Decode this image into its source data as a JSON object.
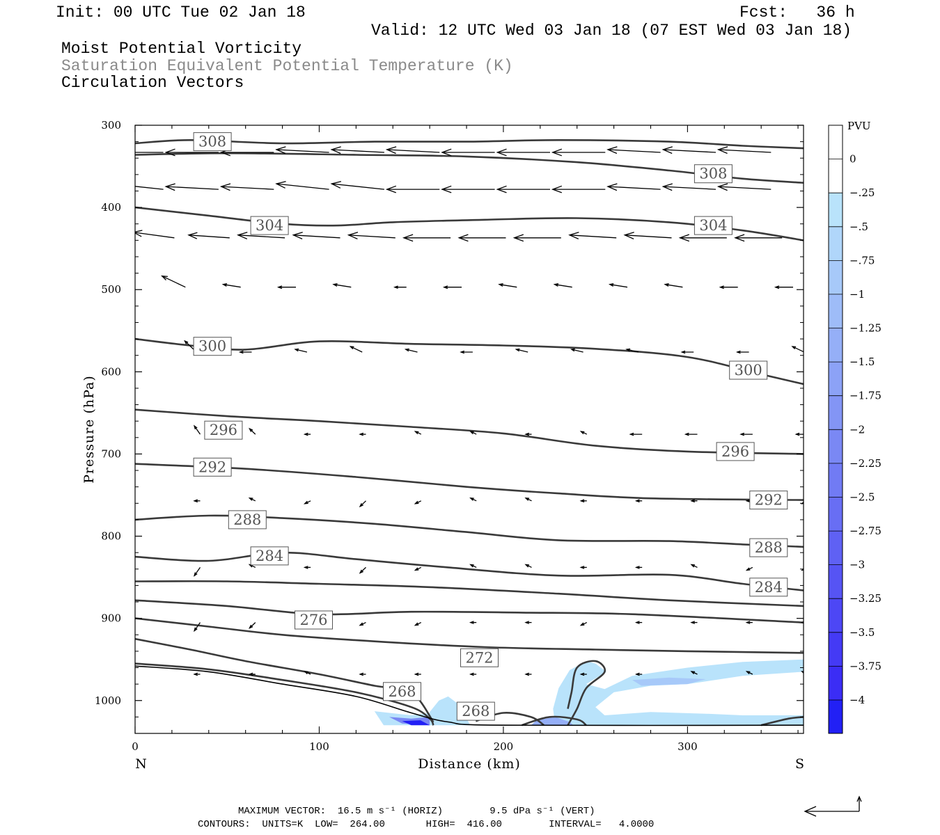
{
  "header": {
    "init": "Init: 00 UTC Tue 02 Jan 18",
    "fcst": "Fcst:   36 h",
    "valid": "Valid: 12 UTC Wed 03 Jan 18 (07 EST Wed 03 Jan 18)",
    "field1": "Moist Potential Vorticity",
    "field2": "Saturation Equivalent Potential Temperature (K)",
    "field3": "Circulation Vectors"
  },
  "footer": {
    "line1": "MAXIMUM VECTOR:  16.5 m s⁻¹ (HORIZ)        9.5 dPa s⁻¹ (VERT)",
    "line2": "CONTOURS:  UNITS=K  LOW=  264.00       HIGH=  416.00        INTERVAL=   4.0000"
  },
  "colors": {
    "contour": "#3a3a3a",
    "pv_light": "#b6e1fb",
    "pv_strong": "#1e1ef5"
  },
  "chart_data": {
    "type": "contour",
    "xlabel": "Distance (km)",
    "ylabel": "Pressure (hPa)",
    "x_left_label": "N",
    "x_right_label": "S",
    "xlim": [
      0,
      363
    ],
    "ylim": [
      300,
      1040
    ],
    "x_ticks": [
      0,
      100,
      200,
      300
    ],
    "y_ticks": [
      300,
      400,
      500,
      600,
      700,
      800,
      900,
      1000
    ],
    "colorbar": {
      "title": "PVU",
      "levels": [
        "0",
        "-.25",
        "-.5",
        "-.75",
        "-1",
        "-1.25",
        "-1.5",
        "-1.75",
        "-2",
        "-2.25",
        "-2.5",
        "-2.75",
        "-3",
        "-3.25",
        "-3.5",
        "-3.75",
        "-4"
      ],
      "colors": [
        "#ffffff",
        "#ffffff",
        "#b9e3fb",
        "#b0d6fa",
        "#a7c9f9",
        "#9ebcf8",
        "#95aff7",
        "#8ca2f6",
        "#8395f5",
        "#7a88f4",
        "#717bf4",
        "#686ef4",
        "#5f61f4",
        "#5654f4",
        "#4d47f5",
        "#443af5",
        "#3b2df5",
        "#2220f5"
      ]
    },
    "contour_labels": [
      {
        "text": "308",
        "x": 42,
        "p": 320
      },
      {
        "text": "308",
        "x": 314,
        "p": 359
      },
      {
        "text": "304",
        "x": 73,
        "p": 422
      },
      {
        "text": "304",
        "x": 314,
        "p": 422
      },
      {
        "text": "300",
        "x": 42,
        "p": 569
      },
      {
        "text": "300",
        "x": 333,
        "p": 598
      },
      {
        "text": "296",
        "x": 48,
        "p": 671
      },
      {
        "text": "296",
        "x": 326,
        "p": 697
      },
      {
        "text": "292",
        "x": 42,
        "p": 716
      },
      {
        "text": "292",
        "x": 344,
        "p": 756
      },
      {
        "text": "288",
        "x": 61,
        "p": 780
      },
      {
        "text": "288",
        "x": 344,
        "p": 814
      },
      {
        "text": "284",
        "x": 73,
        "p": 824
      },
      {
        "text": "284",
        "x": 344,
        "p": 862
      },
      {
        "text": "276",
        "x": 97,
        "p": 902
      },
      {
        "text": "272",
        "x": 187,
        "p": 948
      },
      {
        "text": "268",
        "x": 145,
        "p": 989
      },
      {
        "text": "268",
        "x": 185,
        "p": 1013
      }
    ],
    "contours": [
      [
        [
          0,
          322
        ],
        [
          30,
          318
        ],
        [
          80,
          322
        ],
        [
          130,
          320
        ],
        [
          180,
          320
        ],
        [
          230,
          318
        ],
        [
          290,
          320
        ],
        [
          330,
          325
        ],
        [
          363,
          328
        ]
      ],
      [
        [
          0,
          336
        ],
        [
          50,
          334
        ],
        [
          120,
          336
        ],
        [
          180,
          338
        ],
        [
          240,
          345
        ],
        [
          290,
          355
        ],
        [
          330,
          365
        ],
        [
          363,
          370
        ]
      ],
      [
        [
          0,
          400
        ],
        [
          40,
          410
        ],
        [
          80,
          420
        ],
        [
          110,
          422
        ],
        [
          140,
          418
        ],
        [
          190,
          415
        ],
        [
          240,
          413
        ],
        [
          290,
          418
        ],
        [
          330,
          428
        ],
        [
          363,
          440
        ]
      ],
      [
        [
          0,
          560
        ],
        [
          30,
          568
        ],
        [
          60,
          573
        ],
        [
          100,
          563
        ],
        [
          150,
          566
        ],
        [
          200,
          568
        ],
        [
          250,
          572
        ],
        [
          300,
          582
        ],
        [
          340,
          603
        ],
        [
          363,
          615
        ]
      ],
      [
        [
          0,
          646
        ],
        [
          50,
          654
        ],
        [
          100,
          660
        ],
        [
          150,
          667
        ],
        [
          200,
          675
        ],
        [
          250,
          690
        ],
        [
          300,
          697
        ],
        [
          363,
          700
        ]
      ],
      [
        [
          0,
          712
        ],
        [
          60,
          718
        ],
        [
          120,
          728
        ],
        [
          180,
          740
        ],
        [
          230,
          748
        ],
        [
          280,
          754
        ],
        [
          363,
          756
        ]
      ],
      [
        [
          0,
          780
        ],
        [
          40,
          775
        ],
        [
          80,
          778
        ],
        [
          130,
          785
        ],
        [
          180,
          795
        ],
        [
          230,
          805
        ],
        [
          290,
          806
        ],
        [
          330,
          810
        ],
        [
          363,
          813
        ]
      ],
      [
        [
          0,
          825
        ],
        [
          40,
          830
        ],
        [
          80,
          820
        ],
        [
          120,
          828
        ],
        [
          170,
          838
        ],
        [
          230,
          848
        ],
        [
          290,
          847
        ],
        [
          330,
          858
        ],
        [
          363,
          866
        ]
      ],
      [
        [
          0,
          855
        ],
        [
          50,
          855
        ],
        [
          100,
          858
        ],
        [
          160,
          862
        ],
        [
          230,
          870
        ],
        [
          290,
          878
        ],
        [
          363,
          885
        ]
      ],
      [
        [
          0,
          878
        ],
        [
          50,
          885
        ],
        [
          100,
          895
        ],
        [
          150,
          892
        ],
        [
          210,
          893
        ],
        [
          270,
          895
        ],
        [
          363,
          905
        ]
      ],
      [
        [
          0,
          900
        ],
        [
          40,
          910
        ],
        [
          80,
          920
        ],
        [
          130,
          928
        ],
        [
          190,
          935
        ],
        [
          250,
          938
        ],
        [
          300,
          940
        ],
        [
          363,
          942
        ]
      ],
      [
        [
          0,
          925
        ],
        [
          30,
          938
        ],
        [
          60,
          952
        ],
        [
          100,
          968
        ],
        [
          130,
          982
        ],
        [
          150,
          990
        ],
        [
          162,
          1026
        ]
      ],
      [
        [
          0,
          955
        ],
        [
          40,
          962
        ],
        [
          80,
          975
        ],
        [
          120,
          990
        ],
        [
          150,
          1008
        ],
        [
          160,
          1022
        ],
        [
          162,
          1030
        ]
      ],
      [
        [
          185,
          1025
        ],
        [
          200,
          1015
        ],
        [
          215,
          1020
        ],
        [
          222,
          1030
        ]
      ],
      [
        [
          210,
          1030
        ],
        [
          225,
          1020
        ],
        [
          240,
          1023
        ],
        [
          245,
          1030
        ]
      ],
      [
        [
          235,
          1030
        ],
        [
          240,
          1010
        ],
        [
          245,
          985
        ],
        [
          255,
          965
        ],
        [
          250,
          952
        ],
        [
          240,
          960
        ],
        [
          237,
          990
        ],
        [
          235,
          1010
        ]
      ],
      [
        [
          340,
          1030
        ],
        [
          355,
          1022
        ],
        [
          363,
          1020
        ]
      ]
    ],
    "pv_regions": [
      {
        "level": "-0.25",
        "poly": [
          [
            130,
            1013
          ],
          [
            150,
            1018
          ],
          [
            160,
            1015
          ],
          [
            163,
            1030
          ],
          [
            135,
            1030
          ]
        ]
      },
      {
        "level": "-0.25",
        "poly": [
          [
            228,
            1028
          ],
          [
            227,
            1010
          ],
          [
            230,
            985
          ],
          [
            236,
            963
          ],
          [
            245,
            952
          ],
          [
            250,
            955
          ],
          [
            256,
            965
          ],
          [
            245,
            980
          ],
          [
            255,
            986
          ],
          [
            270,
            970
          ],
          [
            300,
            960
          ],
          [
            330,
            953
          ],
          [
            363,
            950
          ],
          [
            363,
            965
          ],
          [
            330,
            970
          ],
          [
            300,
            980
          ],
          [
            280,
            982
          ],
          [
            260,
            990
          ],
          [
            250,
            1008
          ],
          [
            255,
            1018
          ],
          [
            280,
            1014
          ],
          [
            310,
            1016
          ],
          [
            330,
            1018
          ],
          [
            363,
            1018
          ],
          [
            363,
            1030
          ],
          [
            240,
            1030
          ]
        ]
      },
      {
        "level": "-0.25",
        "poly": [
          [
            160,
            1014
          ],
          [
            165,
            1000
          ],
          [
            170,
            995
          ],
          [
            176,
            1005
          ],
          [
            182,
            1030
          ],
          [
            160,
            1030
          ]
        ]
      },
      {
        "level": "-0.5",
        "poly": [
          [
            270,
            975
          ],
          [
            290,
            972
          ],
          [
            310,
            974
          ],
          [
            300,
            980
          ],
          [
            275,
            982
          ]
        ]
      },
      {
        "level": "-1.5",
        "poly": [
          [
            138,
            1020
          ],
          [
            150,
            1022
          ],
          [
            160,
            1020
          ],
          [
            160,
            1030
          ],
          [
            145,
            1028
          ]
        ]
      },
      {
        "level": "-3.75",
        "poly": [
          [
            145,
            1025
          ],
          [
            155,
            1024
          ],
          [
            160,
            1030
          ],
          [
            150,
            1030
          ]
        ]
      },
      {
        "level": "-1",
        "poly": [
          [
            215,
            1030
          ],
          [
            218,
            1024
          ],
          [
            228,
            1020
          ],
          [
            236,
            1026
          ],
          [
            238,
            1030
          ]
        ]
      }
    ],
    "terrain": [
      [
        0,
        958
      ],
      [
        40,
        965
      ],
      [
        80,
        980
      ],
      [
        120,
        995
      ],
      [
        150,
        1015
      ],
      [
        170,
        1026
      ],
      [
        200,
        1030
      ],
      [
        363,
        1030
      ]
    ],
    "vectors": [
      {
        "p": 333,
        "x": [
          4,
          34,
          64,
          94,
          124,
          154,
          184,
          214,
          244,
          274,
          304,
          334
        ],
        "u": [
          -9,
          -9,
          -9,
          -9,
          -9,
          -9,
          -9,
          -9,
          -9,
          -9,
          -9,
          -9
        ],
        "w": [
          0,
          0,
          0,
          1,
          1,
          1,
          0,
          0,
          0,
          1,
          1,
          1
        ]
      },
      {
        "p": 378,
        "x": [
          4,
          34,
          64,
          94,
          124,
          154,
          184,
          214,
          244,
          274,
          304,
          334
        ],
        "u": [
          -9,
          -9,
          -9,
          -9,
          -9,
          -9,
          -9,
          -9,
          -9,
          -9,
          -9,
          -9
        ],
        "w": [
          2,
          1,
          1,
          2,
          2,
          0,
          0,
          0,
          0,
          1,
          1,
          1
        ]
      },
      {
        "p": 437,
        "x": [
          10,
          40,
          70,
          100,
          130,
          160,
          190,
          220,
          250,
          280,
          310,
          340
        ],
        "u": [
          -7,
          -7,
          -8,
          -8,
          -8,
          -8,
          -8,
          -8,
          -8,
          -8,
          -8,
          -8
        ],
        "w": [
          2,
          1,
          1,
          1,
          1,
          0,
          0,
          0,
          1,
          1,
          0,
          0
        ]
      },
      {
        "p": 497,
        "x": [
          16,
          46,
          76,
          106,
          136,
          166,
          196,
          226,
          256,
          286,
          316,
          346
        ],
        "u": [
          -4,
          -3,
          -3,
          -3,
          -2,
          -3,
          -3,
          -3,
          -3,
          -3,
          -3,
          -3
        ],
        "w": [
          4,
          1,
          0,
          1,
          0,
          0,
          1,
          1,
          1,
          1,
          0,
          0
        ]
      },
      {
        "p": 576,
        "x": [
          22,
          52,
          82,
          112,
          142,
          172,
          202,
          232,
          262,
          292,
          322,
          352
        ],
        "u": [
          -2,
          -2,
          -2,
          -2,
          -2,
          -2,
          -2,
          -2,
          -2,
          -2,
          -2,
          -2
        ],
        "w": [
          4,
          0,
          1,
          2,
          1,
          0,
          1,
          1,
          1,
          0,
          0,
          2
        ]
      },
      {
        "p": 676,
        "x": [
          24,
          54,
          84,
          114,
          144,
          174,
          204,
          234,
          264,
          294,
          324,
          354
        ],
        "u": [
          -1,
          -1,
          -1,
          -1,
          -1,
          -1,
          -1,
          -1,
          -2,
          -2,
          -2,
          -2
        ],
        "w": [
          3,
          2,
          0,
          0,
          1,
          1,
          0,
          1,
          0,
          0,
          0,
          0
        ]
      },
      {
        "p": 757,
        "x": [
          24,
          54,
          84,
          114,
          144,
          174,
          204,
          234,
          264,
          294,
          324,
          354
        ],
        "u": [
          -1,
          -1,
          -1,
          -1,
          -1,
          -1,
          -1,
          -1,
          -1,
          -1,
          -1,
          -1
        ],
        "w": [
          0,
          1,
          -1,
          -2,
          -1,
          1,
          1,
          0,
          0,
          0,
          0,
          -1
        ]
      },
      {
        "p": 838,
        "x": [
          24,
          54,
          84,
          114,
          144,
          174,
          204,
          234,
          264,
          294,
          324,
          354
        ],
        "u": [
          -1,
          -1,
          -1,
          -1,
          -1,
          -1,
          -1,
          -1,
          -1,
          -1,
          -1,
          -1
        ],
        "w": [
          -3,
          1,
          0,
          -2,
          -1,
          1,
          1,
          0,
          0,
          1,
          -1,
          -1
        ]
      },
      {
        "p": 905,
        "x": [
          24,
          54,
          84,
          114,
          144,
          174,
          204,
          234,
          264,
          294,
          324,
          354
        ],
        "u": [
          -1,
          -1,
          -1,
          -1,
          -1,
          -1,
          -1,
          -1,
          -1,
          -1,
          -1,
          -1
        ],
        "w": [
          -3,
          -2,
          -1,
          -1,
          -1,
          0,
          0,
          -1,
          0,
          0,
          0,
          0
        ]
      },
      {
        "p": 968,
        "x": [
          24,
          54,
          84,
          114,
          144,
          174,
          204,
          234,
          264,
          294,
          324,
          354
        ],
        "u": [
          -1,
          -1,
          -1,
          -1,
          -1,
          -1,
          -1,
          -1,
          -1,
          -1,
          -1,
          -1
        ],
        "w": [
          0,
          0,
          1,
          0,
          0,
          0,
          0,
          0,
          0,
          1,
          1,
          1
        ]
      }
    ]
  }
}
